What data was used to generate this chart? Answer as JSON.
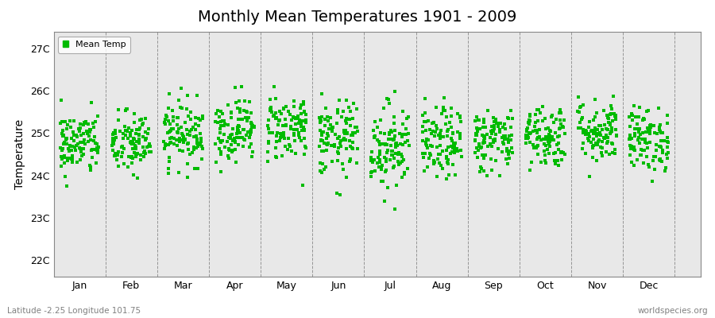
{
  "title": "Monthly Mean Temperatures 1901 - 2009",
  "ylabel": "Temperature",
  "xlabel_labels": [
    "Jan",
    "Feb",
    "Mar",
    "Apr",
    "May",
    "Jun",
    "Jul",
    "Aug",
    "Sep",
    "Oct",
    "Nov",
    "Dec"
  ],
  "ytick_labels": [
    "22C",
    "23C",
    "24C",
    "25C",
    "26C",
    "27C"
  ],
  "ytick_values": [
    22,
    23,
    24,
    25,
    26,
    27
  ],
  "ylim": [
    21.6,
    27.4
  ],
  "xlim": [
    -0.5,
    12
  ],
  "dot_color": "#00bb00",
  "background_color": "#e8e8e8",
  "fig_background": "#ffffff",
  "legend_label": "Mean Temp",
  "subtitle_left": "Latitude -2.25 Longitude 101.75",
  "subtitle_right": "worldspecies.org",
  "n_years": 109,
  "seed": 42,
  "monthly_means": [
    24.75,
    24.75,
    25.0,
    25.1,
    25.15,
    24.85,
    24.7,
    24.75,
    24.85,
    24.95,
    25.05,
    24.85
  ],
  "monthly_stds": [
    0.38,
    0.38,
    0.38,
    0.38,
    0.4,
    0.45,
    0.52,
    0.42,
    0.38,
    0.38,
    0.38,
    0.38
  ],
  "dot_size": 5,
  "title_fontsize": 14,
  "axis_fontsize": 9,
  "ylabel_fontsize": 10
}
